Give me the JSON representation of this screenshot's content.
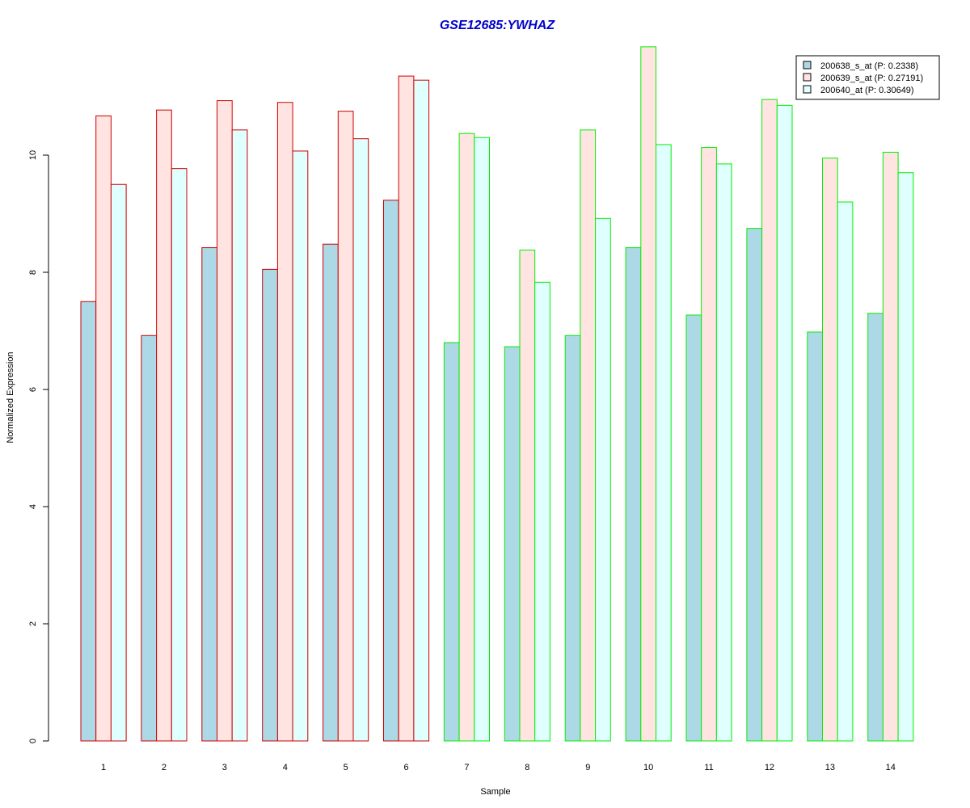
{
  "chart_data": {
    "type": "bar",
    "title": "GSE12685:YWHAZ",
    "xlabel": "Sample",
    "ylabel": "Normalized Expression",
    "categories": [
      "1",
      "2",
      "3",
      "4",
      "5",
      "6",
      "7",
      "8",
      "9",
      "10",
      "11",
      "12",
      "13",
      "14"
    ],
    "ylim": [
      0,
      11.9
    ],
    "yticks": [
      0,
      2,
      4,
      6,
      8,
      10
    ],
    "series": [
      {
        "name": "200638_s_at (P: 0.2338)",
        "fill": "#add8e6",
        "values": [
          7.5,
          6.92,
          8.42,
          8.05,
          8.48,
          9.23,
          6.8,
          6.73,
          6.92,
          8.42,
          7.27,
          8.75,
          6.98,
          7.3
        ]
      },
      {
        "name": "200639_s_at (P: 0.27191)",
        "fill": "#ffe4e1",
        "values": [
          10.67,
          10.77,
          10.93,
          10.9,
          10.75,
          11.35,
          10.37,
          8.38,
          10.43,
          11.85,
          10.13,
          10.95,
          9.95,
          10.05
        ]
      },
      {
        "name": "200640_at (P: 0.30649)",
        "fill": "#e0ffff",
        "values": [
          9.5,
          9.77,
          10.43,
          10.07,
          10.28,
          11.28,
          10.3,
          7.83,
          8.92,
          10.18,
          9.85,
          10.85,
          9.2,
          9.7
        ]
      }
    ],
    "group_border_colors": [
      "#cc0000",
      "#cc0000",
      "#cc0000",
      "#cc0000",
      "#cc0000",
      "#cc0000",
      "#00ee00",
      "#00ee00",
      "#00ee00",
      "#00ee00",
      "#00ee00",
      "#00ee00",
      "#00ee00",
      "#00ee00"
    ],
    "legend_position": "top-right",
    "grid": false
  }
}
